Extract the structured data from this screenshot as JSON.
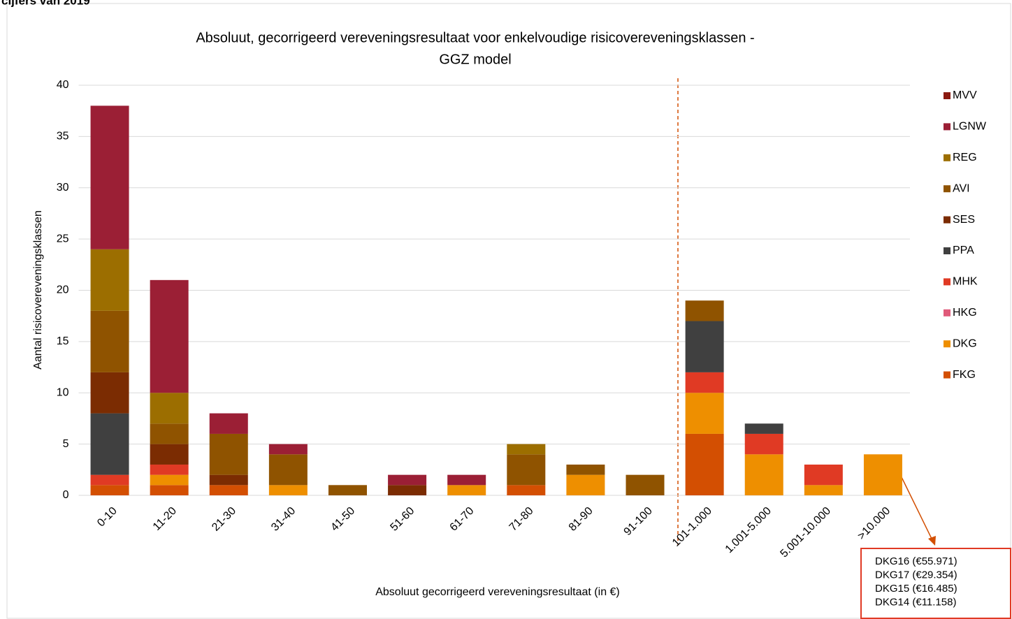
{
  "header_text": "cijfers van 2019",
  "chart_data": {
    "type": "stacked_bar",
    "title": "Absoluut, gecorrigeerd vereveningsresultaat voor enkelvoudige risicovereveningsklassen -",
    "subtitle": "GGZ model",
    "x_label": "Absoluut gecorrigeerd vereveningsresultaat (in €)",
    "y_label": "Aantal risicovereveningsklassen",
    "categories": [
      "0-10",
      "11-20",
      "21-30",
      "31-40",
      "41-50",
      "51-60",
      "61-70",
      "71-80",
      "81-90",
      "91-100",
      "101-1.000",
      "1.001-5.000",
      "5.001-10.000",
      ">10.000"
    ],
    "series": [
      {
        "name": "FKG",
        "color": "#d34f02",
        "values": [
          1,
          1,
          1,
          0,
          0,
          0,
          0,
          1,
          0,
          0,
          6,
          0,
          0,
          0
        ]
      },
      {
        "name": "DKG",
        "color": "#ee8f00",
        "values": [
          0,
          1,
          0,
          1,
          0,
          0,
          1,
          0,
          2,
          0,
          4,
          4,
          1,
          4
        ]
      },
      {
        "name": "HKG",
        "color": "#e05a7a",
        "values": [
          0,
          0,
          0,
          0,
          0,
          0,
          0,
          0,
          0,
          0,
          0,
          0,
          0,
          0
        ]
      },
      {
        "name": "MHK",
        "color": "#e03a24",
        "values": [
          1,
          1,
          0,
          0,
          0,
          0,
          0,
          0,
          0,
          0,
          2,
          2,
          2,
          0
        ]
      },
      {
        "name": "PPA",
        "color": "#404040",
        "values": [
          6,
          0,
          0,
          0,
          0,
          0,
          0,
          0,
          0,
          0,
          5,
          1,
          0,
          0
        ]
      },
      {
        "name": "SES",
        "color": "#7b2c02",
        "values": [
          4,
          2,
          1,
          0,
          0,
          1,
          0,
          0,
          0,
          0,
          0,
          0,
          0,
          0
        ]
      },
      {
        "name": "AVI",
        "color": "#8f5300",
        "values": [
          6,
          2,
          4,
          3,
          1,
          0,
          0,
          3,
          1,
          2,
          2,
          0,
          0,
          0
        ]
      },
      {
        "name": "REG",
        "color": "#9c6e00",
        "values": [
          6,
          3,
          0,
          0,
          0,
          0,
          0,
          1,
          0,
          0,
          0,
          0,
          0,
          0
        ]
      },
      {
        "name": "LGNW",
        "color": "#9b1f35",
        "values": [
          14,
          11,
          2,
          1,
          0,
          1,
          1,
          0,
          0,
          0,
          0,
          0,
          0,
          0
        ]
      },
      {
        "name": "MVV",
        "color": "#8b1a10",
        "values": [
          0,
          0,
          0,
          0,
          0,
          0,
          0,
          0,
          0,
          0,
          0,
          0,
          0,
          0
        ]
      }
    ],
    "ylim": [
      0,
      40
    ],
    "yticks": [
      0,
      5,
      10,
      15,
      20,
      25,
      30,
      35,
      40
    ],
    "grid": true,
    "legend": "right",
    "annotations": [
      "DKG16 (€55.971)",
      "DKG17 (€29.354)",
      "DKG15 (€16.485)",
      "DKG14 (€11.158)"
    ]
  }
}
